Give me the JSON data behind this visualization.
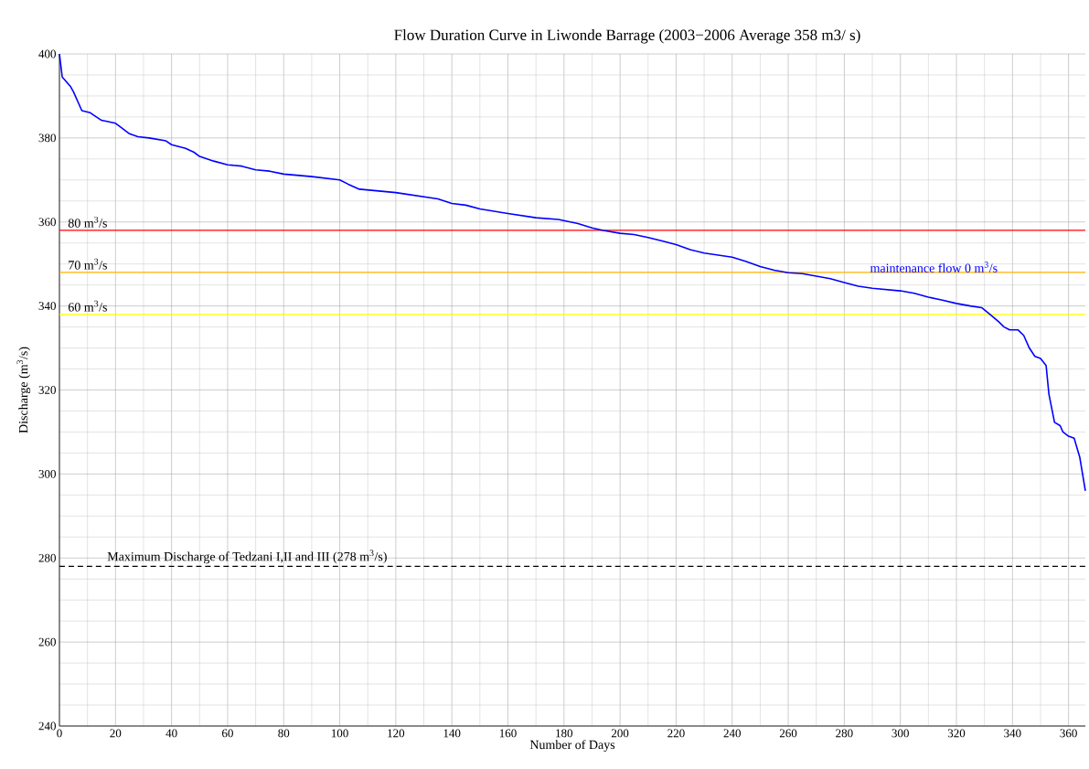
{
  "chart_data": {
    "type": "line",
    "title": "Flow Duration Curve in Liwonde Barrage (2003−2006 Average 358 m3/ s)",
    "xlabel": "Number of Days",
    "ylabel": "Discharge (m$^{3}$/s)",
    "xlim": [
      0,
      366
    ],
    "ylim": [
      240,
      400
    ],
    "xticks": [
      0,
      20,
      40,
      60,
      80,
      100,
      120,
      140,
      160,
      180,
      200,
      220,
      240,
      260,
      280,
      300,
      320,
      340,
      360
    ],
    "yticks": [
      240,
      260,
      280,
      300,
      320,
      340,
      360,
      380,
      400
    ],
    "grid": true,
    "series": [
      {
        "name": "maintenance flow 0 m$^{3}$/s",
        "color": "#0000ff",
        "x": [
          0,
          1,
          4,
          5,
          8,
          11,
          15,
          20,
          22,
          25,
          28,
          32,
          38,
          40,
          45,
          48,
          50,
          55,
          60,
          65,
          70,
          75,
          80,
          90,
          100,
          103,
          107,
          120,
          130,
          135,
          140,
          145,
          150,
          160,
          170,
          178,
          185,
          190,
          194,
          200,
          205,
          210,
          215,
          220,
          225,
          230,
          240,
          245,
          250,
          255,
          260,
          265,
          270,
          275,
          280,
          285,
          290,
          300,
          305,
          310,
          315,
          320,
          325,
          329,
          332,
          335,
          337,
          339,
          342,
          344,
          346,
          348,
          350,
          352,
          353,
          355,
          357,
          358,
          360,
          362,
          364,
          366
        ],
        "values": [
          400,
          394.5,
          392.2,
          391,
          386.5,
          386,
          384.2,
          383.5,
          382.5,
          381,
          380.3,
          380,
          379.3,
          378.4,
          377.5,
          376.6,
          375.6,
          374.5,
          373.6,
          373.3,
          372.4,
          372.1,
          371.4,
          370.8,
          370,
          369,
          367.8,
          367,
          366,
          365.5,
          364.4,
          364,
          363.1,
          362,
          361,
          360.6,
          359.6,
          358.6,
          358,
          357.3,
          357,
          356.3,
          355.5,
          354.6,
          353.4,
          352.6,
          351.6,
          350.6,
          349.4,
          348.5,
          347.9,
          347.7,
          347.1,
          346.5,
          345.6,
          344.7,
          344.2,
          343.6,
          343,
          342.1,
          341.4,
          340.6,
          340,
          339.6,
          338,
          336.3,
          335,
          334.3,
          334.3,
          333,
          330,
          328,
          327.5,
          325.8,
          319,
          312.3,
          311.5,
          310,
          309,
          308.5,
          304,
          296
        ]
      }
    ],
    "ref_lines": [
      {
        "axis": "y",
        "value": 358,
        "label": "80 m$^{3}$/s",
        "color": "#ff0000",
        "line_style": "solid"
      },
      {
        "axis": "y",
        "value": 348,
        "label": "70 m$^{3}$/s",
        "color": "#ffb000",
        "line_style": "solid"
      },
      {
        "axis": "y",
        "value": 338,
        "label": "60 m$^{3}$/s",
        "color": "#ffff00",
        "line_style": "solid"
      },
      {
        "axis": "y",
        "value": 278,
        "label": "Maximum Discharge of Tedzani I,II and III (278 m$^{3}$/s)",
        "color": "#000000",
        "line_style": "dashed"
      }
    ]
  }
}
